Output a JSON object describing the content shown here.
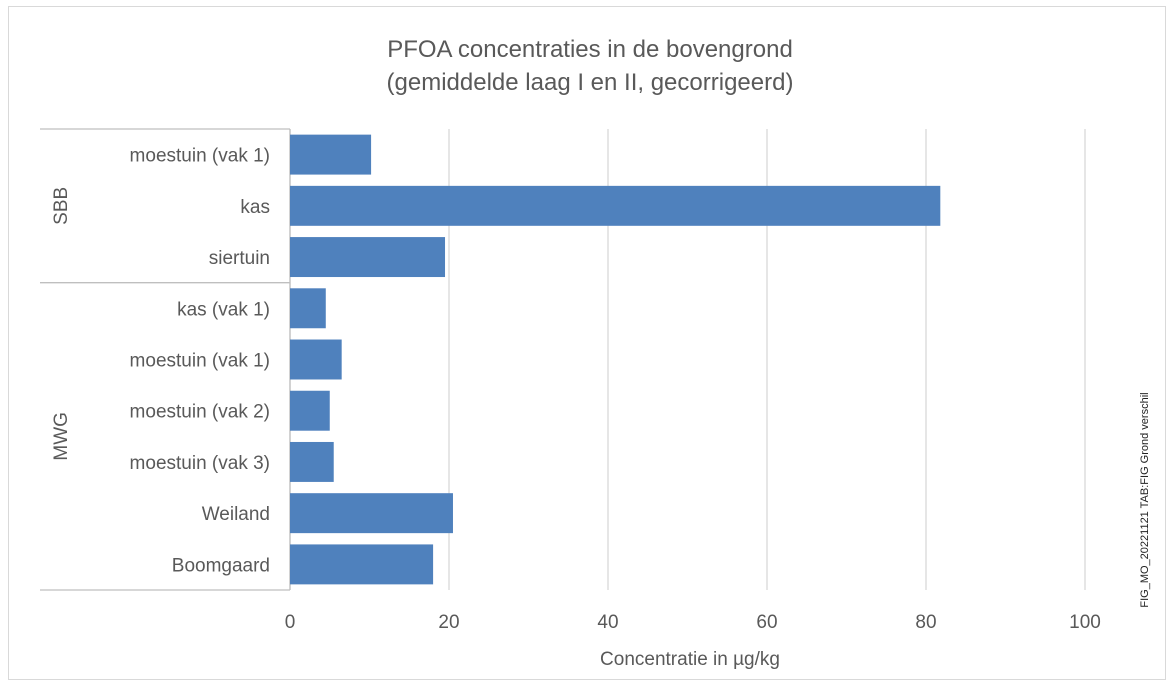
{
  "chart_data": {
    "type": "bar",
    "orientation": "horizontal",
    "title": "PFOA concentraties in de bovengrond",
    "subtitle": "(gemiddelde laag I en II, gecorrigeerd)",
    "xlabel": "Concentratie in µg/kg",
    "xlim": [
      0,
      100
    ],
    "xticks": [
      0,
      20,
      40,
      60,
      80,
      100
    ],
    "grid": true,
    "bar_color": "#4f81bd",
    "groups": [
      {
        "name": "SBB",
        "categories": [
          "moestuin (vak 1)",
          "kas",
          "siertuin"
        ],
        "values": [
          10.2,
          81.8,
          19.5
        ]
      },
      {
        "name": "MWG",
        "categories": [
          "kas (vak 1)",
          "moestuin (vak 1)",
          "moestuin (vak 2)",
          "moestuin (vak 3)",
          "Weiland",
          "Boomgaard"
        ],
        "values": [
          4.5,
          6.5,
          5.0,
          5.5,
          20.5,
          18.0
        ]
      }
    ]
  },
  "side_note": "FIG_MO_20221121 TAB:FIG Grond verschil"
}
